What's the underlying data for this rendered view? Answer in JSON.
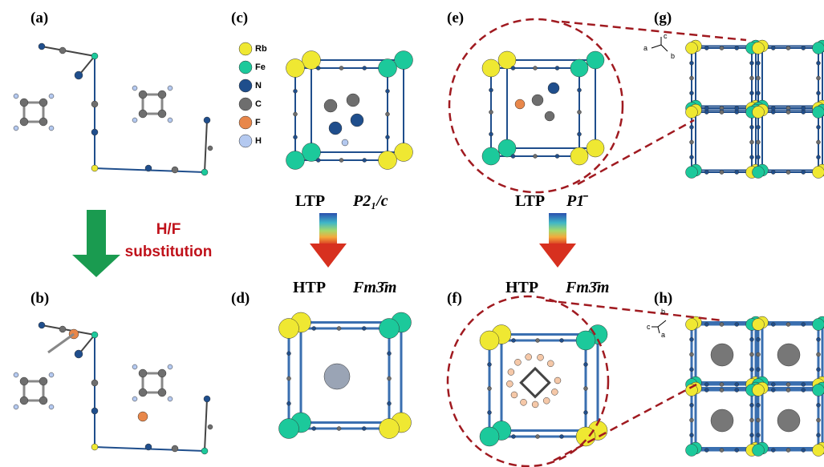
{
  "panels": [
    "(a)",
    "(b)",
    "(c)",
    "(d)",
    "(e)",
    "(f)",
    "(g)",
    "(h)"
  ],
  "substitution": [
    "H/F",
    "substitution"
  ],
  "legend": [
    "Rb",
    "Fe",
    "N",
    "C",
    "F",
    "H"
  ],
  "transitions": [
    {
      "low": "LTP",
      "low_group": "P2₁/c",
      "high": "HTP",
      "high_group": "Fm3̄m"
    },
    {
      "low": "LTP",
      "low_group": "P1̄",
      "high": "HTP",
      "high_group": "Fm3̄m"
    }
  ],
  "axes_g": [
    "c",
    "a",
    "b"
  ],
  "axes_h": [
    "b",
    "c",
    "a"
  ]
}
